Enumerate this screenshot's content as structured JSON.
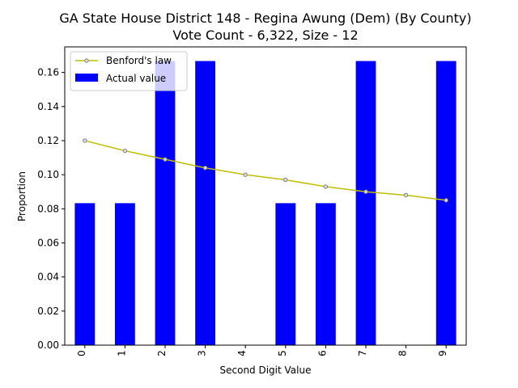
{
  "chart_data": {
    "type": "bar",
    "title": "GA State House District 148 - Regina Awung (Dem) (By County)",
    "subtitle": "Vote Count - 6,322, Size - 12",
    "xlabel": "Second Digit Value",
    "ylabel": "Proportion",
    "categories": [
      "0",
      "1",
      "2",
      "3",
      "4",
      "5",
      "6",
      "7",
      "8",
      "9"
    ],
    "series": [
      {
        "name": "Actual value",
        "type": "bar",
        "color": "#0000ff",
        "values": [
          0.0833,
          0.0833,
          0.1667,
          0.1667,
          0.0,
          0.0833,
          0.0833,
          0.1667,
          0.0,
          0.1667
        ]
      },
      {
        "name": "Benford's law",
        "type": "line",
        "color": "#bfbf00",
        "values": [
          0.12,
          0.114,
          0.109,
          0.104,
          0.1,
          0.097,
          0.093,
          0.09,
          0.088,
          0.085
        ]
      }
    ],
    "ylim": [
      0,
      0.175
    ],
    "yticks": [
      "0.00",
      "0.02",
      "0.04",
      "0.06",
      "0.08",
      "0.10",
      "0.12",
      "0.14",
      "0.16"
    ],
    "grid": false,
    "legend_position": "top-left"
  }
}
